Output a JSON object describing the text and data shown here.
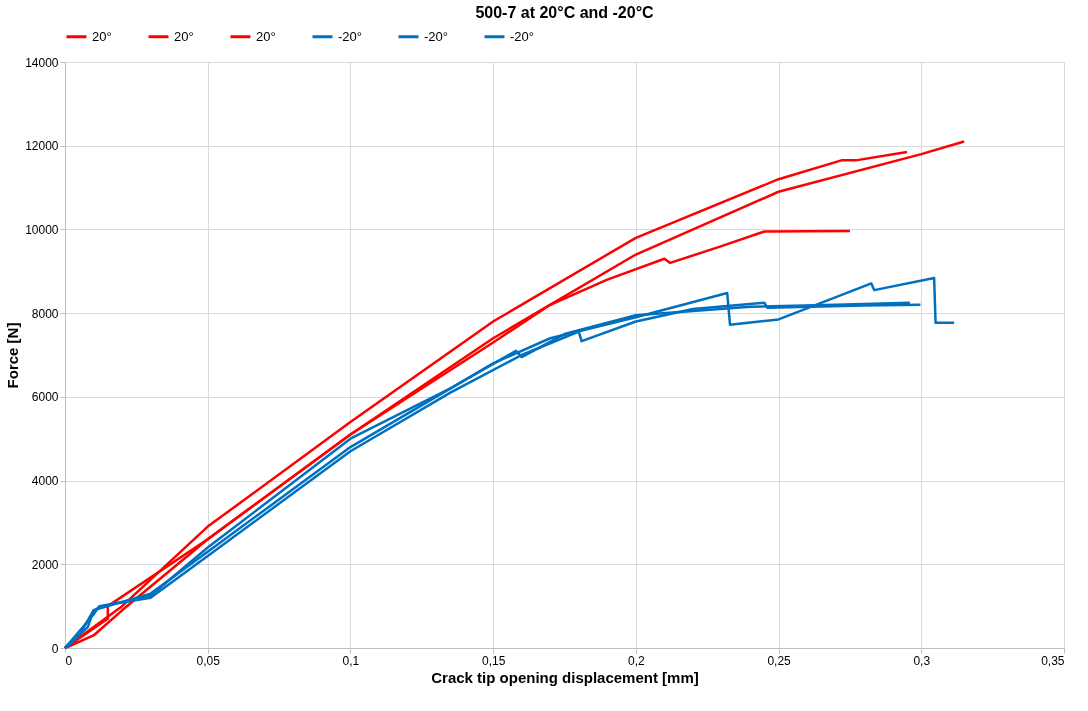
{
  "chart_data": {
    "type": "line",
    "title": "500-7 at 20°C and -20°C",
    "xlabel": "Crack tip opening displacement [mm]",
    "ylabel": "Force [N]",
    "xlim": [
      0,
      0.35
    ],
    "xticks": [
      0,
      {
        "value": 0.05,
        "label": "0,05"
      },
      {
        "value": 0.1,
        "label": "0,1"
      },
      {
        "value": 0.15,
        "label": "0,15"
      },
      {
        "value": 0.2,
        "label": "0,2"
      },
      {
        "value": 0.25,
        "label": "0,25"
      },
      {
        "value": 0.3,
        "label": "0,3"
      },
      {
        "value": 0.35,
        "label": "0,35"
      }
    ],
    "ylim": [
      0,
      14000
    ],
    "yticks": [
      0,
      2000,
      4000,
      6000,
      8000,
      10000,
      12000,
      14000
    ],
    "grid": true,
    "legend": "top",
    "marker": "none",
    "line_style": "solid",
    "series": [
      {
        "name": "20°",
        "color": "#ff0000",
        "x": [
          0,
          0.01,
          0.02,
          0.05,
          0.1,
          0.15,
          0.2,
          0.25,
          0.3,
          0.315
        ],
        "values": [
          0,
          300,
          900,
          2600,
          5100,
          7400,
          9400,
          10900,
          11800,
          12100
        ]
      },
      {
        "name": "20°",
        "color": "#ff0000",
        "x": [
          0,
          0.02,
          0.05,
          0.1,
          0.15,
          0.2,
          0.25,
          0.272,
          0.277,
          0.295
        ],
        "values": [
          0,
          1000,
          2900,
          5400,
          7800,
          9800,
          11200,
          11650,
          11650,
          11850
        ]
      },
      {
        "name": "20°",
        "color": "#ff0000",
        "x": [
          0,
          0.015,
          0.015,
          0.05,
          0.1,
          0.15,
          0.17,
          0.19,
          0.21,
          0.212,
          0.23,
          0.245,
          0.275
        ],
        "values": [
          0,
          700,
          1000,
          2600,
          5100,
          7300,
          8200,
          8800,
          9300,
          9200,
          9600,
          9950,
          9960
        ]
      },
      {
        "name": "-20°",
        "color": "#0070c0",
        "x": [
          0,
          0.005,
          0.01,
          0.015,
          0.03,
          0.05,
          0.1,
          0.15,
          0.17,
          0.2,
          0.232,
          0.233,
          0.25,
          0.2825,
          0.2835,
          0.3045,
          0.305,
          0.3115
        ],
        "values": [
          0,
          300,
          900,
          1000,
          1300,
          2300,
          4800,
          6800,
          7400,
          7900,
          8480,
          7720,
          7850,
          8710,
          8550,
          8840,
          7770,
          7770
        ]
      },
      {
        "name": "-20°",
        "color": "#0070c0",
        "x": [
          0,
          0.01,
          0.012,
          0.03,
          0.05,
          0.1,
          0.135,
          0.16,
          0.18,
          0.181,
          0.2,
          0.22,
          0.245,
          0.246,
          0.28,
          0.2997
        ],
        "values": [
          0,
          800,
          1000,
          1200,
          2200,
          4700,
          6100,
          7000,
          7560,
          7330,
          7800,
          8100,
          8250,
          8130,
          8180,
          8200
        ]
      },
      {
        "name": "-20°",
        "color": "#0070c0",
        "x": [
          0,
          0.008,
          0.01,
          0.013,
          0.03,
          0.05,
          0.1,
          0.135,
          0.158,
          0.16,
          0.175,
          0.2,
          0.24,
          0.27,
          0.296
        ],
        "values": [
          0,
          500,
          900,
          1000,
          1250,
          2400,
          5000,
          6200,
          7100,
          6950,
          7500,
          7950,
          8150,
          8200,
          8250
        ]
      }
    ]
  }
}
